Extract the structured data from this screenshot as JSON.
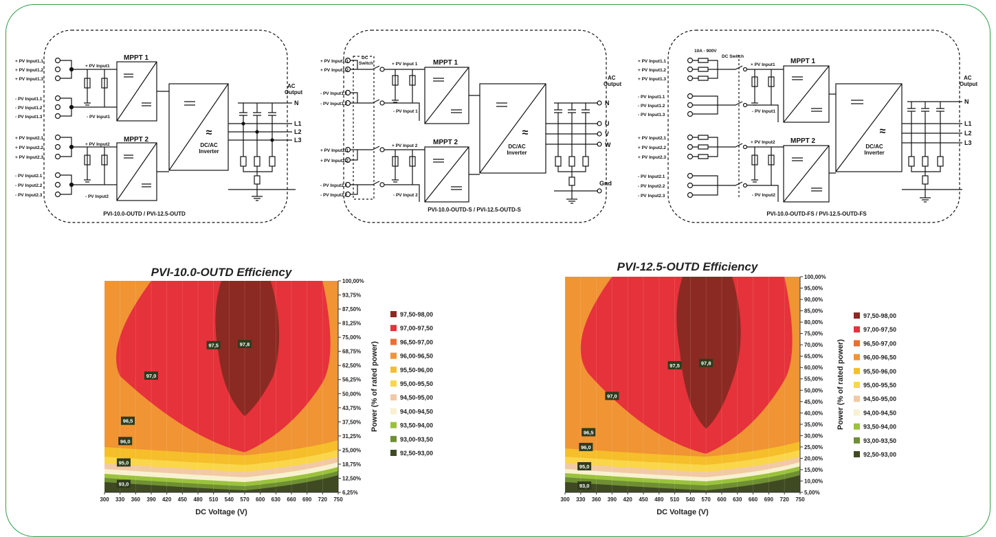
{
  "schematics": [
    {
      "caption": "PVI-10.0-OUTD / PVI-12.5-OUTD",
      "inputs": [
        "+ PV Input1.1",
        "+ PV Input1.2",
        "+ PV Input1.3",
        "- PV Input1.1",
        "- PV Input1.2",
        "- PV Input1.3",
        "+ PV Input2.1",
        "+ PV Input2.2",
        "+ PV Input2.3",
        "- PV Input2.1",
        "- PV Input2.2",
        "- PV Input2.3"
      ],
      "bus_labels": [
        "+ PV Input1",
        "- PV Input1",
        "+ PV Input2",
        "- PV Input2"
      ],
      "mppt": [
        "MPPT 1",
        "MPPT 2"
      ],
      "inverter": [
        "DC/AC",
        "Inverter"
      ],
      "ac_output": [
        "AC",
        "Output"
      ],
      "terminals": [
        "N",
        "L1",
        "L2",
        "L3"
      ]
    },
    {
      "caption": "PVI-10.0-OUTD-S / PVI-12.5-OUTD-S",
      "inputs": [
        "+ PV Input1.1",
        "+ PV Input1.2",
        "- PV Input1.1",
        "- PV Input1.2",
        "+ PV Input2.1",
        "+ PV Input2.2",
        "- PV Input2.1",
        "- PV Input2.2"
      ],
      "switch_label": [
        "DC",
        "Switch"
      ],
      "bus_labels": [
        "+ PV Input 1",
        "- PV Input 1",
        "+ PV Input 2",
        "- PV Input 2"
      ],
      "mppt": [
        "MPPT 1",
        "MPPT 2"
      ],
      "inverter": [
        "DC/AC",
        "Inverter"
      ],
      "ac_output": [
        "AC",
        "Output"
      ],
      "terminals": [
        "N",
        "U",
        "V",
        "W",
        "Gnd"
      ]
    },
    {
      "caption": "PVI-10.0-OUTD-FS / PVI-12.5-OUTD-FS",
      "inputs": [
        "+ PV Input1.1",
        "+ PV Input1.2",
        "+ PV Input1.3",
        "- PV Input1.1",
        "- PV Input1.2",
        "- PV Input1.3",
        "+ PV Input2.1",
        "+ PV Input2.2",
        "+ PV Input2.3",
        "- PV Input2.1",
        "- PV Input2.2",
        "- PV Input2.3"
      ],
      "fuse_label": "10A - 900V",
      "switch_label": "DC Switch",
      "bus_labels": [
        "+ PV Input1",
        "- PV Input1",
        "+ PV Input2",
        "- PV Input2"
      ],
      "mppt": [
        "MPPT 1",
        "MPPT 2"
      ],
      "inverter": [
        "DC/AC",
        "Inverter"
      ],
      "ac_output": [
        "AC",
        "Output"
      ],
      "terminals": [
        "N",
        "L1",
        "L2",
        "L3"
      ]
    }
  ],
  "legend": [
    {
      "label": "97,50-98,00",
      "color": "#8b2a22"
    },
    {
      "label": "97,00-97,50",
      "color": "#e6323a"
    },
    {
      "label": "96,50-97,00",
      "color": "#ec6e31"
    },
    {
      "label": "96,00-96,50",
      "color": "#f09434"
    },
    {
      "label": "95,50-96,00",
      "color": "#f5be2a"
    },
    {
      "label": "95,00-95,50",
      "color": "#fad64a"
    },
    {
      "label": "94,50-95,00",
      "color": "#f2c9a5"
    },
    {
      "label": "94,00-94,50",
      "color": "#f8f1cf"
    },
    {
      "label": "93,50-94,00",
      "color": "#9bc23c"
    },
    {
      "label": "93,00-93,50",
      "color": "#6f8f33"
    },
    {
      "label": "92,50-93,00",
      "color": "#3f4a22"
    }
  ],
  "chart_data": [
    {
      "type": "heatmap",
      "title": "PVI-10.0-OUTD Efficiency",
      "xlabel": "DC Voltage (V)",
      "ylabel": "Power (% of rated power)",
      "x_ticks": [
        "300",
        "330",
        "360",
        "390",
        "420",
        "450",
        "480",
        "510",
        "540",
        "570",
        "600",
        "630",
        "660",
        "690",
        "720",
        "750"
      ],
      "y_ticks": [
        "100,00%",
        "93,75%",
        "87,50%",
        "81,25%",
        "75,00%",
        "68,75%",
        "62,50%",
        "56,25%",
        "50,00%",
        "43,75%",
        "37,50%",
        "31,25%",
        "25,00%",
        "18,75%",
        "12,50%",
        "6,25%"
      ],
      "xlim": [
        300,
        750
      ],
      "ylim": [
        6.25,
        100
      ],
      "contour_labels": [
        {
          "text": "97,8",
          "x": 570,
          "y": 72
        },
        {
          "text": "97,5",
          "x": 510,
          "y": 71.5
        },
        {
          "text": "97,0",
          "x": 390,
          "y": 58
        },
        {
          "text": "96,5",
          "x": 345,
          "y": 38
        },
        {
          "text": "96,0",
          "x": 340,
          "y": 29
        },
        {
          "text": "95,0",
          "x": 337,
          "y": 19.5
        },
        {
          "text": "93,0",
          "x": 337,
          "y": 10
        }
      ]
    },
    {
      "type": "heatmap",
      "title": "PVI-12.5-OUTD Efficiency",
      "xlabel": "DC Voltage (V)",
      "ylabel": "Power (% of rated power)",
      "x_ticks": [
        "300",
        "330",
        "360",
        "390",
        "420",
        "450",
        "480",
        "510",
        "540",
        "570",
        "600",
        "630",
        "660",
        "690",
        "720",
        "750"
      ],
      "y_ticks": [
        "100,00%",
        "95,00%",
        "90,00%",
        "85,00%",
        "80,00%",
        "75,00%",
        "70,00%",
        "65,00%",
        "60,00%",
        "55,00%",
        "50,00%",
        "45,00%",
        "40,00%",
        "35,00%",
        "30,00%",
        "25,00%",
        "20,00%",
        "15,00%",
        "10,00%",
        "5,00%"
      ],
      "xlim": [
        300,
        750
      ],
      "ylim": [
        5,
        100
      ],
      "contour_labels": [
        {
          "text": "97,8",
          "x": 570,
          "y": 62
        },
        {
          "text": "97,5",
          "x": 510,
          "y": 61
        },
        {
          "text": "97,0",
          "x": 390,
          "y": 47.5
        },
        {
          "text": "96,5",
          "x": 345,
          "y": 31.5
        },
        {
          "text": "96,0",
          "x": 340,
          "y": 25
        },
        {
          "text": "95,0",
          "x": 337,
          "y": 16.5
        },
        {
          "text": "93,0",
          "x": 337,
          "y": 8
        }
      ]
    }
  ]
}
